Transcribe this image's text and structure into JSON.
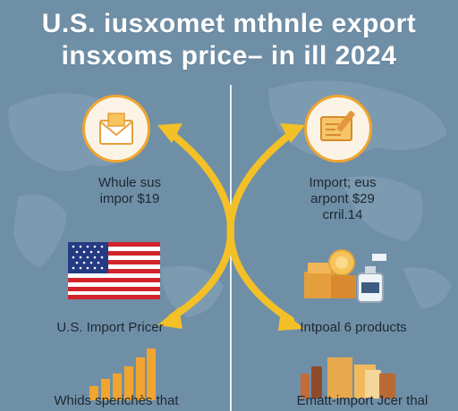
{
  "colors": {
    "background": "#6f8fa7",
    "accent": "#f3c027",
    "icon_ring": "#f0a530",
    "title_text": "#ffffff",
    "label_text": "#1d2833"
  },
  "title": {
    "line1": "U.S. iusxomet mthnle export",
    "line2": "insxoms price– in ill 2024"
  },
  "left": {
    "icon": "envelope-icon",
    "caption_line1": "Whule sus",
    "caption_line2": "impor $19",
    "flag": "us-flag",
    "flag_label": "U.S. Import Pricer",
    "chart": "bar-chart-icon",
    "bottom_label": "Whids sperichès that"
  },
  "right": {
    "icon": "document-pen-icon",
    "caption_line1": "Import; eus",
    "caption_line2": "arpont $29",
    "caption_line3": "crril.14",
    "products": "products-icon",
    "products_label": "Intpoal 6 products",
    "goods": "goods-icon",
    "bottom_label": "Ematt-import Jcer thal"
  }
}
